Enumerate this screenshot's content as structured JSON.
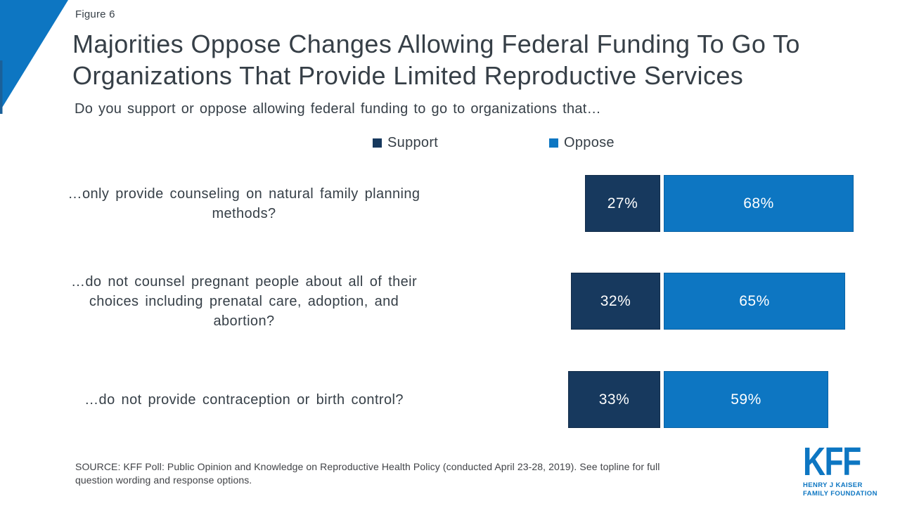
{
  "header": {
    "figure_label": "Figure 6",
    "title_line1": "Majorities Oppose Changes Allowing Federal Funding To Go To",
    "title_line2": "Organizations That Provide Limited Reproductive Services",
    "subtitle": "Do you support or oppose allowing federal funding to go to organizations that…"
  },
  "legend": {
    "support_label": "Support",
    "oppose_label": "Oppose"
  },
  "colors": {
    "support": "#17395e",
    "oppose": "#0d76c2",
    "accent_triangle": "#0d76c2",
    "accent_sliver": "#1a6099",
    "title_text": "#363f47",
    "source_text": "#414347",
    "bar_value_text": "#ffffff"
  },
  "chart_data": {
    "type": "bar",
    "orientation": "horizontal",
    "layout": "diverging-stacked",
    "title": "Majorities Oppose Changes Allowing Federal Funding To Go To Organizations That Provide Limited Reproductive Services",
    "subtitle": "Do you support or oppose allowing federal funding to go to organizations that…",
    "categories": [
      "…only provide counseling on natural family planning methods?",
      "…do not counsel pregnant people about all of their choices including prenatal care, adoption, and abortion?",
      "…do not provide contraception or birth control?"
    ],
    "categories_lines": [
      [
        "…only provide counseling on natural family planning",
        "methods?"
      ],
      [
        "…do not counsel pregnant people about all of their",
        "choices including prenatal care, adoption, and",
        "abortion?"
      ],
      [
        "…do not provide contraception or birth control?"
      ]
    ],
    "series": [
      {
        "name": "Support",
        "values": [
          27,
          32,
          33
        ],
        "color": "#17395e"
      },
      {
        "name": "Oppose",
        "values": [
          68,
          65,
          59
        ],
        "color": "#0d76c2"
      }
    ],
    "value_labels": {
      "support": [
        "27%",
        "32%",
        "33%"
      ],
      "oppose": [
        "68%",
        "65%",
        "59%"
      ]
    },
    "unit": "percent",
    "legend_position": "top",
    "axes": "none",
    "grid": false
  },
  "source": {
    "line1": "SOURCE: KFF Poll: Public Opinion and Knowledge on Reproductive Health Policy (conducted April 23-28, 2019). See topline for full",
    "line2": "question wording and response options."
  },
  "logo": {
    "acronym": "KFF",
    "line1": "HENRY J KAISER",
    "line2": "FAMILY FOUNDATION"
  }
}
